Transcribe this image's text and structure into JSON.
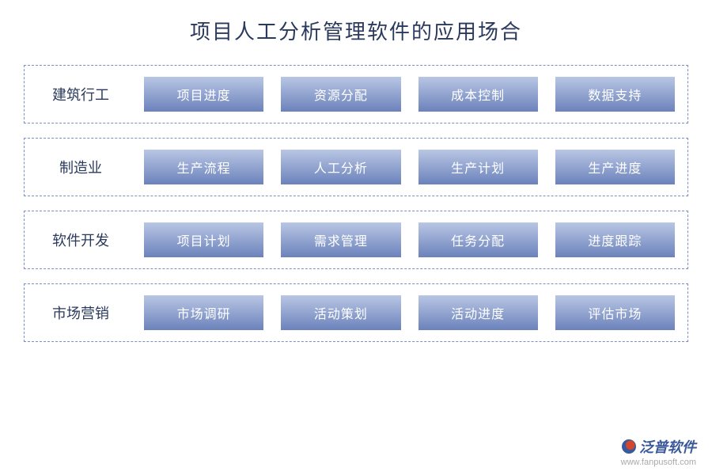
{
  "title": "项目人工分析管理软件的应用场合",
  "title_color": "#2b3a5c",
  "title_fontsize": 26,
  "background_color": "#ffffff",
  "row_border_color": "#7a8fc9",
  "row_border_style": "dashed",
  "category_label_color": "#2b3a5c",
  "category_label_fontsize": 18,
  "item_gradient_top": "#b9c6e4",
  "item_gradient_bottom": "#6b82bb",
  "item_text_color": "#ffffff",
  "item_fontsize": 16,
  "rows": [
    {
      "label": "建筑行工",
      "items": [
        "项目进度",
        "资源分配",
        "成本控制",
        "数据支持"
      ]
    },
    {
      "label": "制造业",
      "items": [
        "生产流程",
        "人工分析",
        "生产计划",
        "生产进度"
      ]
    },
    {
      "label": "软件开发",
      "items": [
        "项目计划",
        "需求管理",
        "任务分配",
        "进度跟踪"
      ]
    },
    {
      "label": "市场营销",
      "items": [
        "市场调研",
        "活动策划",
        "活动进度",
        "评估市场"
      ]
    }
  ],
  "footer": {
    "brand_text": "泛普软件",
    "brand_color": "#3b5998",
    "logo_color_outer": "#3b5998",
    "logo_color_inner": "#d4472c",
    "url": "www.fanpusoft.com",
    "url_color": "#aaaaaa"
  }
}
